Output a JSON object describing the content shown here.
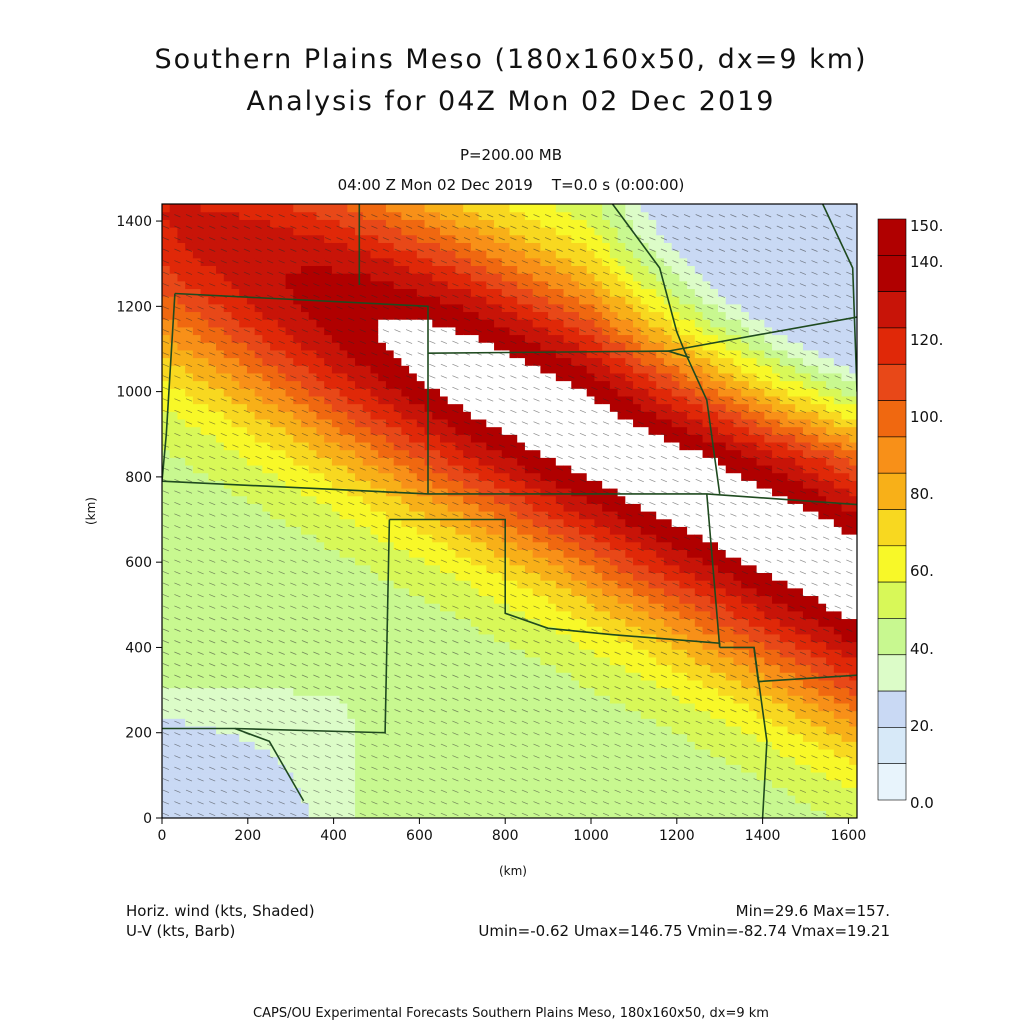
{
  "header": {
    "title_line1": "Southern Plains Meso (180x160x50, dx=9 km)",
    "title_line2": "Analysis for 04Z Mon 02 Dec 2019",
    "level": "P=200.00 MB",
    "time": "04:00 Z Mon 02 Dec 2019    T=0.0 s (0:00:00)"
  },
  "chart_data": {
    "type": "heatmap",
    "xlabel": "(km)",
    "ylabel": "(km)",
    "xlim": [
      0,
      1620
    ],
    "ylim": [
      0,
      1440
    ],
    "xticks": [
      0,
      200,
      400,
      600,
      800,
      1000,
      1200,
      1400,
      1600
    ],
    "yticks": [
      0,
      200,
      400,
      600,
      800,
      1000,
      1200,
      1400
    ],
    "colorbar": {
      "labels": [
        "150.",
        "140.",
        "120.",
        "100.",
        "80.",
        "60.",
        "40.",
        "20.",
        "0.0"
      ],
      "levels": [
        0,
        10,
        20,
        30,
        40,
        50,
        60,
        70,
        80,
        90,
        100,
        110,
        120,
        130,
        140,
        150
      ],
      "colors": [
        "#e8f4fc",
        "#d7e9f8",
        "#c9d9f4",
        "#dcfcc8",
        "#c8f890",
        "#d8f858",
        "#f8f828",
        "#f8d820",
        "#f8b018",
        "#f89018",
        "#f06810",
        "#e84818",
        "#e02808",
        "#c81408",
        "#b00000",
        "#ffffff"
      ]
    },
    "field": "Horizontal wind speed (kts) at 200 mb, jet max oriented NW-SE",
    "wind_min": 29.6,
    "wind_max": 157.0
  },
  "footer": {
    "left_line1": "Horiz. wind (kts, Shaded)",
    "left_line2": "U-V (kts, Barb)",
    "right_line1": "Min=29.6 Max=157.",
    "right_line2": "Umin=-0.62 Umax=146.75 Vmin=-82.74 Vmax=19.21",
    "credit": "CAPS/OU Experimental Forecasts  Southern Plains Meso, 180x160x50, dx=9 km"
  }
}
